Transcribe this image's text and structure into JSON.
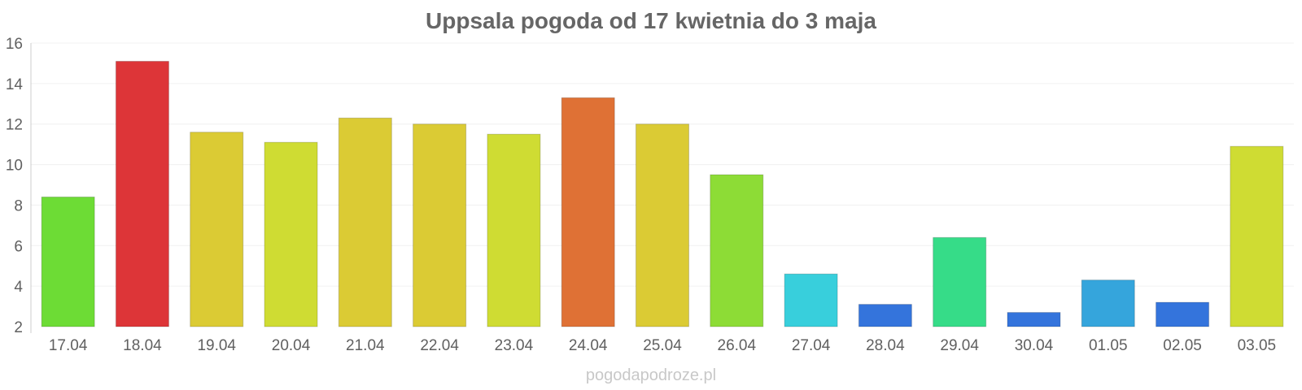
{
  "chart_data": {
    "type": "bar",
    "title": "Uppsala pogoda od 17 kwietnia do 3 maja",
    "xlabel": "",
    "ylabel": "",
    "ylim": [
      2,
      16
    ],
    "yticks": [
      2,
      4,
      6,
      8,
      10,
      12,
      14,
      16
    ],
    "grid": true,
    "categories": [
      "17.04",
      "18.04",
      "19.04",
      "20.04",
      "21.04",
      "22.04",
      "23.04",
      "24.04",
      "25.04",
      "26.04",
      "27.04",
      "28.04",
      "29.04",
      "30.04",
      "01.05",
      "02.05",
      "03.05"
    ],
    "values": [
      8.4,
      15.1,
      11.6,
      11.1,
      12.3,
      12.0,
      11.5,
      13.3,
      12.0,
      9.5,
      4.6,
      3.1,
      6.4,
      2.7,
      4.3,
      3.2,
      10.9
    ],
    "colors": [
      "#6ddc35",
      "#dd3538",
      "#dbcb34",
      "#cfdc33",
      "#dbcb34",
      "#dbcb34",
      "#cfdc33",
      "#df7135",
      "#dbcb34",
      "#8ddc36",
      "#38cfdc",
      "#3474dc",
      "#36dc88",
      "#3474dc",
      "#35a5dc",
      "#3474dc",
      "#cfdc33"
    ]
  },
  "watermark": "pogodapodroze.pl"
}
